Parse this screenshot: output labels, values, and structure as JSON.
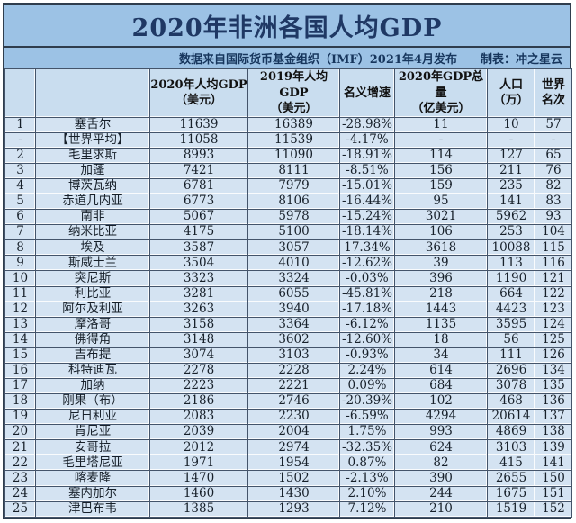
{
  "title": "2020年非洲各国人均GDP",
  "subtitle_source": "数据来自国际货币基金组织（IMF）2021年4月发布",
  "subtitle_credit": "制表：冲之星云",
  "colors": {
    "band_blue": "#9cc2e5",
    "cell_blue": "#d4e3f2",
    "header_cell_blue": "#c9ddef",
    "title_text": "#1f3864",
    "grid_line": "#44546a"
  },
  "chart_data": {
    "type": "table",
    "title": "2020年非洲各国人均GDP",
    "columns": [
      {
        "id": "index",
        "label": ""
      },
      {
        "id": "name",
        "label": ""
      },
      {
        "id": "gdp2020",
        "label": "2020年人均GDP\n（美元）"
      },
      {
        "id": "gdp2019",
        "label": "2019年人均GDP\n（美元）"
      },
      {
        "id": "growth",
        "label": "名义增速"
      },
      {
        "id": "total",
        "label": "2020年GDP总量\n（亿美元）"
      },
      {
        "id": "pop",
        "label": "人口\n（万）"
      },
      {
        "id": "rank",
        "label": "世界\n名次"
      }
    ],
    "rows": [
      [
        "1",
        "塞舌尔",
        "11639",
        "16389",
        "-28.98%",
        "11",
        "10",
        "57"
      ],
      [
        "-",
        "【世界平均】",
        "11058",
        "11539",
        "-4.17%",
        "-",
        "-",
        "-"
      ],
      [
        "2",
        "毛里求斯",
        "8993",
        "11090",
        "-18.91%",
        "114",
        "127",
        "65"
      ],
      [
        "3",
        "加蓬",
        "7421",
        "8111",
        "-8.51%",
        "156",
        "211",
        "76"
      ],
      [
        "4",
        "博茨瓦纳",
        "6781",
        "7979",
        "-15.01%",
        "159",
        "235",
        "82"
      ],
      [
        "5",
        "赤道几内亚",
        "6773",
        "8106",
        "-16.44%",
        "95",
        "141",
        "83"
      ],
      [
        "6",
        "南非",
        "5067",
        "5978",
        "-15.24%",
        "3021",
        "5962",
        "93"
      ],
      [
        "7",
        "纳米比亚",
        "4175",
        "5100",
        "-18.14%",
        "106",
        "253",
        "104"
      ],
      [
        "8",
        "埃及",
        "3587",
        "3057",
        "17.34%",
        "3618",
        "10088",
        "115"
      ],
      [
        "9",
        "斯威士兰",
        "3504",
        "4010",
        "-12.62%",
        "39",
        "113",
        "116"
      ],
      [
        "10",
        "突尼斯",
        "3323",
        "3324",
        "-0.03%",
        "396",
        "1190",
        "121"
      ],
      [
        "11",
        "利比亚",
        "3281",
        "6055",
        "-45.81%",
        "218",
        "664",
        "122"
      ],
      [
        "12",
        "阿尔及利亚",
        "3263",
        "3940",
        "-17.18%",
        "1443",
        "4423",
        "123"
      ],
      [
        "13",
        "摩洛哥",
        "3158",
        "3364",
        "-6.12%",
        "1135",
        "3595",
        "124"
      ],
      [
        "14",
        "佛得角",
        "3148",
        "3602",
        "-12.60%",
        "18",
        "56",
        "125"
      ],
      [
        "15",
        "吉布提",
        "3074",
        "3103",
        "-0.93%",
        "34",
        "111",
        "126"
      ],
      [
        "16",
        "科特迪瓦",
        "2278",
        "2228",
        "2.24%",
        "614",
        "2696",
        "134"
      ],
      [
        "17",
        "加纳",
        "2223",
        "2221",
        "0.09%",
        "684",
        "3078",
        "135"
      ],
      [
        "18",
        "刚果（布）",
        "2186",
        "2746",
        "-20.39%",
        "102",
        "468",
        "136"
      ],
      [
        "19",
        "尼日利亚",
        "2083",
        "2230",
        "-6.59%",
        "4294",
        "20614",
        "137"
      ],
      [
        "20",
        "肯尼亚",
        "2039",
        "2004",
        "1.75%",
        "993",
        "4869",
        "138"
      ],
      [
        "21",
        "安哥拉",
        "2012",
        "2974",
        "-32.35%",
        "624",
        "3103",
        "139"
      ],
      [
        "22",
        "毛里塔尼亚",
        "1971",
        "1954",
        "0.87%",
        "82",
        "415",
        "141"
      ],
      [
        "23",
        "喀麦隆",
        "1470",
        "1502",
        "-2.13%",
        "390",
        "2655",
        "150"
      ],
      [
        "24",
        "塞内加尔",
        "1460",
        "1430",
        "2.10%",
        "244",
        "1675",
        "151"
      ],
      [
        "25",
        "津巴布韦",
        "1385",
        "1293",
        "7.12%",
        "210",
        "1519",
        "152"
      ]
    ]
  }
}
